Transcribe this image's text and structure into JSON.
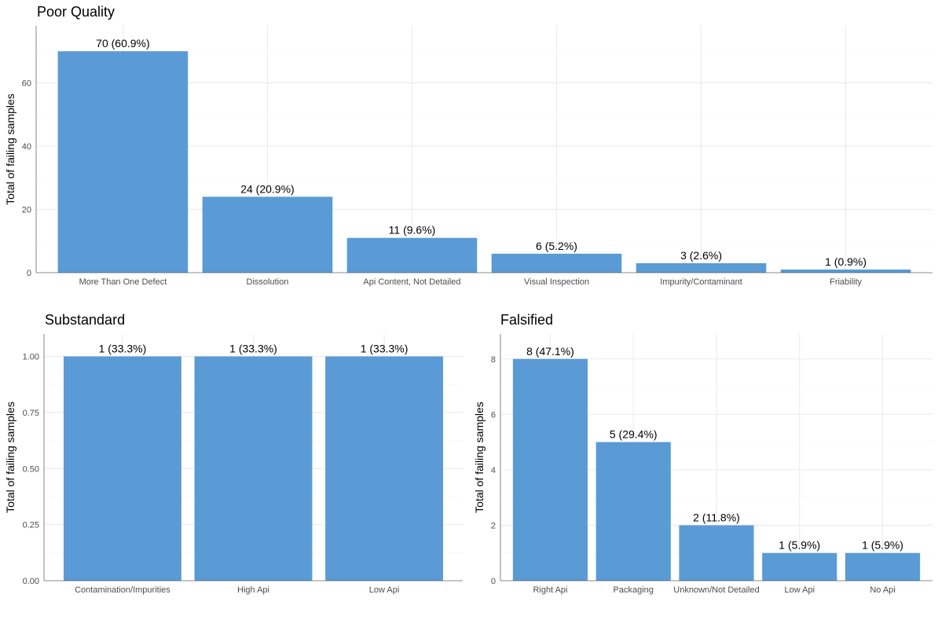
{
  "colors": {
    "bar": "#5b9bd5"
  },
  "chart_data": [
    {
      "type": "bar",
      "title": "Poor Quality",
      "ylabel": "Total of failing samples",
      "xlabel": "",
      "ylim": [
        0,
        78
      ],
      "yticks": [
        0,
        20,
        40,
        60
      ],
      "ytick_labels": [
        "0",
        "20",
        "40",
        "60"
      ],
      "grid": true,
      "categories": [
        "More Than One Defect",
        "Dissolution",
        "Api Content, Not Detailed",
        "Visual Inspection",
        "Impurity/Contaminant",
        "Friability"
      ],
      "values": [
        70,
        24,
        11,
        6,
        3,
        1
      ],
      "labels": [
        "70 (60.9%)",
        "24 (20.9%)",
        "11 (9.6%)",
        "6 (5.2%)",
        "3 (2.6%)",
        "1 (0.9%)"
      ]
    },
    {
      "type": "bar",
      "title": "Substandard",
      "ylabel": "Total of failing samples",
      "xlabel": "",
      "ylim": [
        0,
        1.1
      ],
      "yticks": [
        0,
        0.25,
        0.5,
        0.75,
        1.0
      ],
      "ytick_labels": [
        "0.00",
        "0.25",
        "0.50",
        "0.75",
        "1.00"
      ],
      "grid": true,
      "categories": [
        "Contamination/Impurities",
        "High Api",
        "Low Api"
      ],
      "values": [
        1,
        1,
        1
      ],
      "labels": [
        "1 (33.3%)",
        "1 (33.3%)",
        "1 (33.3%)"
      ]
    },
    {
      "type": "bar",
      "title": "Falsified",
      "ylabel": "Total of failing samples",
      "xlabel": "",
      "ylim": [
        0,
        8.9
      ],
      "yticks": [
        0,
        2,
        4,
        6,
        8
      ],
      "ytick_labels": [
        "0",
        "2",
        "4",
        "6",
        "8"
      ],
      "grid": true,
      "categories": [
        "Right Api",
        "Packaging",
        "Unknown/Not Detailed",
        "Low Api",
        "No Api"
      ],
      "values": [
        8,
        5,
        2,
        1,
        1
      ],
      "labels": [
        "8 (47.1%)",
        "5 (29.4%)",
        "2 (11.8%)",
        "1 (5.9%)",
        "1 (5.9%)"
      ]
    }
  ]
}
